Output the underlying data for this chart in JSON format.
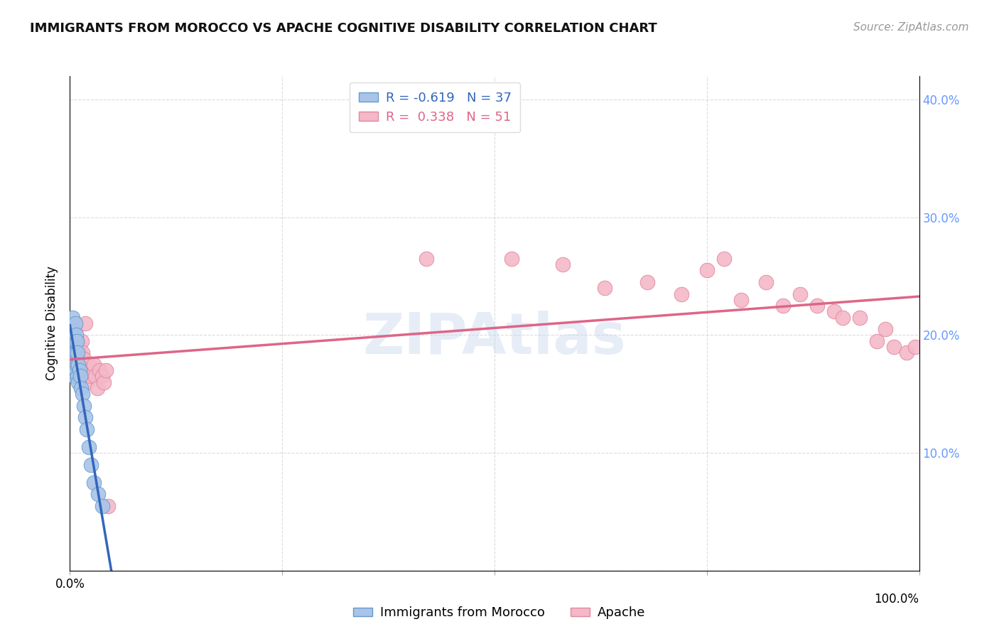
{
  "title": "IMMIGRANTS FROM MOROCCO VS APACHE COGNITIVE DISABILITY CORRELATION CHART",
  "source": "Source: ZipAtlas.com",
  "ylabel": "Cognitive Disability",
  "background_color": "#ffffff",
  "grid_color": "#cccccc",
  "morocco_color": "#a8c4e8",
  "apache_color": "#f4b8c8",
  "morocco_edge_color": "#6699cc",
  "apache_edge_color": "#e088a0",
  "trendline_morocco_color": "#3366bb",
  "trendline_apache_color": "#dd6688",
  "right_axis_tick_color": "#6699ff",
  "morocco_R": -0.619,
  "morocco_N": 37,
  "apache_R": 0.338,
  "apache_N": 51,
  "morocco_x": [
    0.001,
    0.002,
    0.002,
    0.002,
    0.003,
    0.003,
    0.003,
    0.004,
    0.004,
    0.004,
    0.005,
    0.005,
    0.005,
    0.006,
    0.006,
    0.006,
    0.007,
    0.007,
    0.007,
    0.008,
    0.008,
    0.009,
    0.009,
    0.01,
    0.01,
    0.011,
    0.012,
    0.013,
    0.015,
    0.016,
    0.018,
    0.02,
    0.022,
    0.025,
    0.028,
    0.033,
    0.038
  ],
  "morocco_y": [
    0.195,
    0.205,
    0.19,
    0.18,
    0.215,
    0.19,
    0.175,
    0.2,
    0.185,
    0.17,
    0.195,
    0.18,
    0.165,
    0.21,
    0.195,
    0.175,
    0.2,
    0.185,
    0.17,
    0.195,
    0.175,
    0.185,
    0.165,
    0.175,
    0.16,
    0.17,
    0.165,
    0.155,
    0.15,
    0.14,
    0.13,
    0.12,
    0.105,
    0.09,
    0.075,
    0.065,
    0.055
  ],
  "apache_x": [
    0.002,
    0.003,
    0.004,
    0.005,
    0.005,
    0.006,
    0.006,
    0.007,
    0.008,
    0.009,
    0.01,
    0.011,
    0.012,
    0.013,
    0.014,
    0.015,
    0.016,
    0.017,
    0.018,
    0.02,
    0.022,
    0.025,
    0.028,
    0.03,
    0.032,
    0.035,
    0.038,
    0.04,
    0.042,
    0.045,
    0.42,
    0.52,
    0.58,
    0.63,
    0.68,
    0.72,
    0.75,
    0.77,
    0.79,
    0.82,
    0.84,
    0.86,
    0.88,
    0.9,
    0.91,
    0.93,
    0.95,
    0.96,
    0.97,
    0.985,
    0.995
  ],
  "apache_y": [
    0.2,
    0.185,
    0.21,
    0.195,
    0.175,
    0.205,
    0.19,
    0.175,
    0.195,
    0.18,
    0.175,
    0.19,
    0.165,
    0.175,
    0.195,
    0.185,
    0.18,
    0.17,
    0.21,
    0.16,
    0.175,
    0.165,
    0.175,
    0.165,
    0.155,
    0.17,
    0.165,
    0.16,
    0.17,
    0.055,
    0.265,
    0.265,
    0.26,
    0.24,
    0.245,
    0.235,
    0.255,
    0.265,
    0.23,
    0.245,
    0.225,
    0.235,
    0.225,
    0.22,
    0.215,
    0.215,
    0.195,
    0.205,
    0.19,
    0.185,
    0.19
  ],
  "morocco_trendline_x": [
    0.0,
    0.28
  ],
  "apache_trendline_x": [
    0.0,
    1.0
  ],
  "xlim": [
    0.0,
    1.0
  ],
  "ylim": [
    0.0,
    0.42
  ],
  "yticks": [
    0.0,
    0.1,
    0.2,
    0.3,
    0.4
  ],
  "xticks": [
    0.0,
    0.25,
    0.5,
    0.75,
    1.0
  ]
}
